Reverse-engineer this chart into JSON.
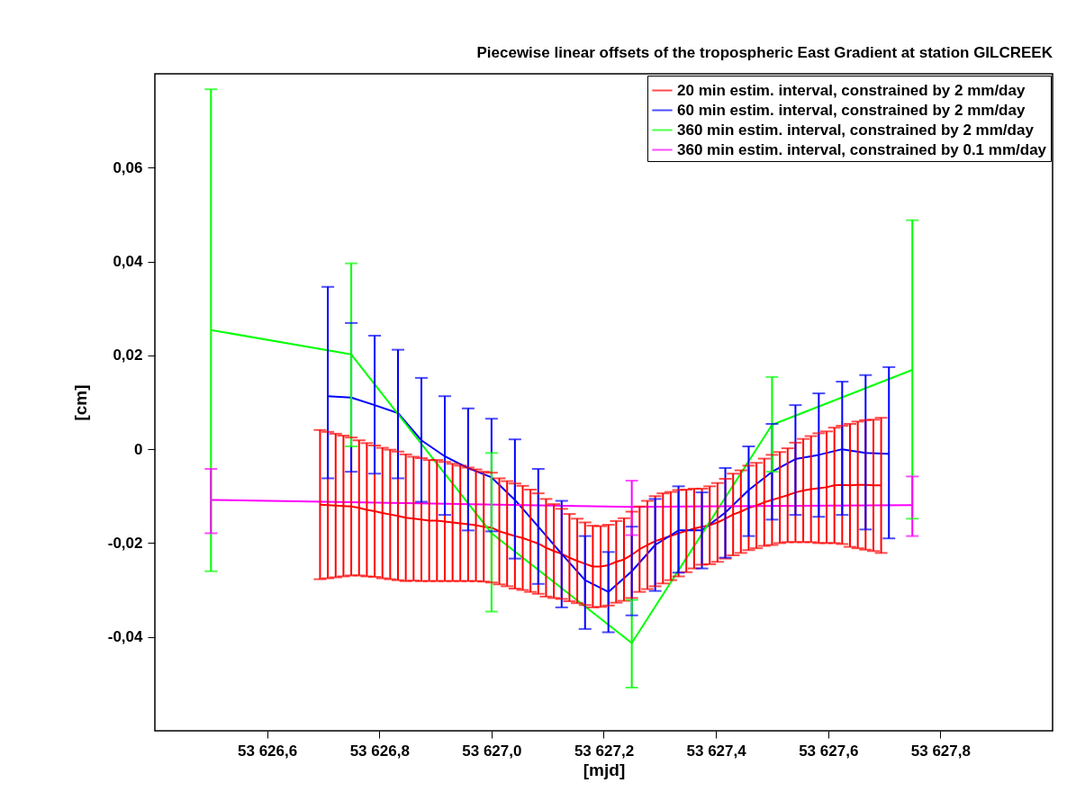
{
  "chart_data": {
    "type": "line",
    "title": "Piecewise linear offsets of the tropospheric East Gradient at station GILCREEK",
    "xlabel": "[mjd]",
    "ylabel": "[cm]",
    "xlim": [
      53626.4,
      53628.0
    ],
    "xticks": [
      {
        "value": 53626.6,
        "label": "53 626,6"
      },
      {
        "value": 53626.8,
        "label": "53 626,8"
      },
      {
        "value": 53627.0,
        "label": "53 627,0"
      },
      {
        "value": 53627.2,
        "label": "53 627,2"
      },
      {
        "value": 53627.4,
        "label": "53 627,4"
      },
      {
        "value": 53627.6,
        "label": "53 627,6"
      },
      {
        "value": 53627.8,
        "label": "53 627,8"
      }
    ],
    "ylim": [
      -0.06,
      0.08
    ],
    "yticks": [
      {
        "value": -0.04,
        "label": "-0,04"
      },
      {
        "value": -0.02,
        "label": "-0,02"
      },
      0,
      {
        "value": 0.02,
        "label": "0,02"
      },
      {
        "value": 0.04,
        "label": "0,04"
      },
      {
        "value": 0.06,
        "label": "0,06"
      }
    ],
    "grid": false,
    "legend": "top right",
    "line_style": "solid",
    "series": [
      {
        "name": " 20 min estim. interval, constrained by 2 mm/day",
        "color": "#ff0000",
        "x": [
          53626.6944,
          53626.7083,
          53626.7222,
          53626.7361,
          53626.75,
          53626.7639,
          53626.7778,
          53626.7917,
          53626.8056,
          53626.8194,
          53626.8333,
          53626.8472,
          53626.8611,
          53626.875,
          53626.8889,
          53626.9028,
          53626.9167,
          53626.9306,
          53626.9444,
          53626.9583,
          53626.9722,
          53626.9861,
          53627.0,
          53627.0139,
          53627.0278,
          53627.0417,
          53627.0556,
          53627.0694,
          53627.0833,
          53627.0972,
          53627.1111,
          53627.125,
          53627.1389,
          53627.1528,
          53627.1667,
          53627.1806,
          53627.1944,
          53627.2083,
          53627.2222,
          53627.2361,
          53627.25,
          53627.2639,
          53627.2778,
          53627.2917,
          53627.3056,
          53627.3194,
          53627.3333,
          53627.3472,
          53627.3611,
          53627.375,
          53627.3889,
          53627.4028,
          53627.4167,
          53627.4306,
          53627.4444,
          53627.4583,
          53627.4722,
          53627.4861,
          53627.5,
          53627.5139,
          53627.5278,
          53627.5417,
          53627.5556,
          53627.5694,
          53627.5833,
          53627.5972,
          53627.6111,
          53627.625,
          53627.6389,
          53627.6528,
          53627.6667,
          53627.6806,
          53627.6944
        ],
        "values": [
          -0.0118,
          -0.0119,
          -0.012,
          -0.0121,
          -0.0122,
          -0.0125,
          -0.0129,
          -0.0132,
          -0.0136,
          -0.0139,
          -0.0142,
          -0.0146,
          -0.0148,
          -0.015,
          -0.0152,
          -0.0152,
          -0.0154,
          -0.0156,
          -0.0158,
          -0.016,
          -0.0162,
          -0.0165,
          -0.0167,
          -0.0175,
          -0.018,
          -0.0185,
          -0.0189,
          -0.0195,
          -0.0201,
          -0.021,
          -0.0217,
          -0.0223,
          -0.0231,
          -0.0238,
          -0.0244,
          -0.025,
          -0.025,
          -0.0247,
          -0.024,
          -0.0235,
          -0.0225,
          -0.0213,
          -0.0204,
          -0.0196,
          -0.019,
          -0.0185,
          -0.0179,
          -0.0174,
          -0.0169,
          -0.0165,
          -0.0162,
          -0.0156,
          -0.0148,
          -0.0139,
          -0.0133,
          -0.0125,
          -0.012,
          -0.0113,
          -0.0108,
          -0.0103,
          -0.0098,
          -0.0092,
          -0.0088,
          -0.0085,
          -0.0083,
          -0.0081,
          -0.0077,
          -0.0076,
          -0.0077,
          -0.0076,
          -0.0076,
          -0.0077,
          -0.0077
        ],
        "errors": [
          0.0159,
          0.0156,
          0.0153,
          0.015,
          0.0147,
          0.0144,
          0.0142,
          0.014,
          0.0139,
          0.0138,
          0.0137,
          0.0135,
          0.0132,
          0.0131,
          0.0129,
          0.0129,
          0.0127,
          0.0125,
          0.0123,
          0.0121,
          0.0119,
          0.0117,
          0.0117,
          0.0113,
          0.0112,
          0.0112,
          0.0111,
          0.0109,
          0.0107,
          0.0104,
          0.01,
          0.0096,
          0.0093,
          0.009,
          0.0088,
          0.0087,
          0.0086,
          0.0086,
          0.0087,
          0.0088,
          0.0092,
          0.0091,
          0.0094,
          0.0096,
          0.0096,
          0.0094,
          0.0092,
          0.0088,
          0.0085,
          0.0081,
          0.0083,
          0.0084,
          0.0085,
          0.0087,
          0.0088,
          0.009,
          0.0091,
          0.0093,
          0.0096,
          0.0097,
          0.01,
          0.0106,
          0.011,
          0.0113,
          0.0117,
          0.0119,
          0.0123,
          0.0126,
          0.0131,
          0.0135,
          0.0138,
          0.014,
          0.0144
        ]
      },
      {
        "name": " 60 min estim. interval, constrained by 2 mm/day",
        "color": "#0000ff",
        "x": [
          53626.7083,
          53626.75,
          53626.7917,
          53626.8333,
          53626.875,
          53626.9167,
          53626.9583,
          53627.0,
          53627.0417,
          53627.0833,
          53627.125,
          53627.1667,
          53627.2083,
          53627.25,
          53627.2917,
          53627.3333,
          53627.375,
          53627.4167,
          53627.4583,
          53627.5,
          53627.5417,
          53627.5833,
          53627.625,
          53627.6667,
          53627.7083
        ],
        "values": [
          0.0113,
          0.011,
          0.0094,
          0.0077,
          0.0019,
          -0.0015,
          -0.004,
          -0.006,
          -0.0108,
          -0.0165,
          -0.0223,
          -0.0279,
          -0.0304,
          -0.026,
          -0.0204,
          -0.0173,
          -0.0173,
          -0.0135,
          -0.0087,
          -0.0048,
          -0.0021,
          -0.0012,
          0.0,
          -0.0008,
          -0.001
        ],
        "errors": [
          [
            -0.0062,
            0.0346
          ],
          [
            -0.0048,
            0.0269
          ],
          [
            -0.0052,
            0.0242
          ],
          [
            -0.0062,
            0.0212
          ],
          [
            -0.0112,
            0.0152
          ],
          [
            -0.014,
            0.0113
          ],
          [
            -0.0173,
            0.0087
          ],
          [
            -0.0175,
            0.0065
          ],
          [
            -0.0233,
            0.0021
          ],
          [
            -0.0287,
            -0.0042
          ],
          [
            -0.0337,
            -0.011
          ],
          [
            -0.0383,
            -0.0185
          ],
          [
            -0.039,
            -0.0219
          ],
          [
            -0.0354,
            -0.0165
          ],
          [
            -0.0302,
            -0.0106
          ],
          [
            -0.0263,
            -0.0079
          ],
          [
            -0.0254,
            -0.0092
          ],
          [
            -0.0231,
            -0.004
          ],
          [
            -0.0185,
            0.0006
          ],
          [
            -0.015,
            0.0054
          ],
          [
            -0.014,
            0.0094
          ],
          [
            -0.0144,
            0.0119
          ],
          [
            -0.014,
            0.0144
          ],
          [
            -0.0171,
            0.0158
          ],
          [
            -0.019,
            0.0175
          ]
        ]
      },
      {
        "name": "360 min estim. interval, constrained by 2 mm/day",
        "color": "#00ff00",
        "x": [
          53626.5,
          53626.75,
          53627.0,
          53627.25,
          53627.5,
          53627.75
        ],
        "values": [
          0.0254,
          0.0202,
          -0.0179,
          -0.0413,
          0.0052,
          0.0169
        ],
        "errors": [
          [
            -0.026,
            0.0767
          ],
          [
            0.0006,
            0.0396
          ],
          [
            -0.0346,
            -0.0008
          ],
          [
            -0.0508,
            -0.0321
          ],
          [
            -0.0048,
            0.0154
          ],
          [
            -0.0148,
            0.0488
          ]
        ]
      },
      {
        "name": "360 min estim. interval, constrained by 0.1 mm/day",
        "color": "#ff00ff",
        "x": [
          53626.5,
          53627.25,
          53627.75
        ],
        "values": [
          -0.0108,
          -0.0123,
          -0.0119
        ],
        "errors": [
          [
            -0.0179,
            -0.0042
          ],
          [
            -0.0183,
            -0.0067
          ],
          [
            -0.0185,
            -0.0058
          ]
        ]
      }
    ]
  }
}
